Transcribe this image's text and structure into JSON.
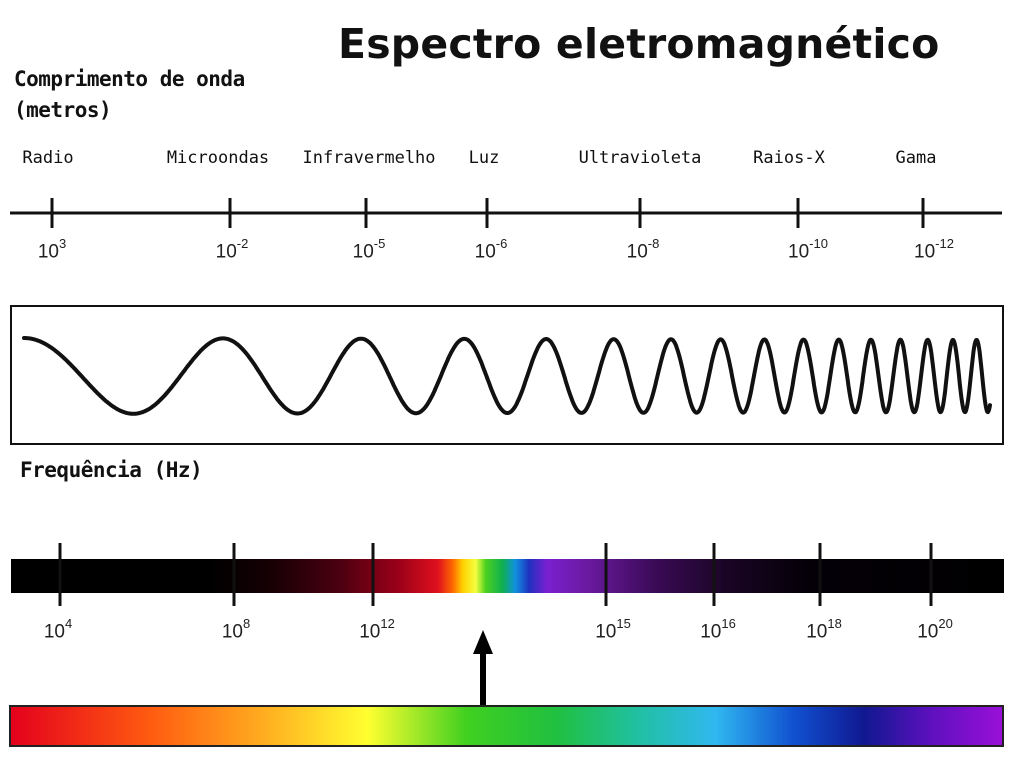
{
  "title": "Espectro eletromagnético",
  "wavelength": {
    "label_line1": "Comprimento de onda",
    "label_line2": "(metros)",
    "bands": [
      {
        "name": "Radio",
        "base": "10",
        "exp": "3"
      },
      {
        "name": "Microondas",
        "base": "10",
        "exp": "-2"
      },
      {
        "name": "Infravermelho",
        "base": "10",
        "exp": "-5"
      },
      {
        "name": "Luz",
        "base": "10",
        "exp": "-6"
      },
      {
        "name": "Ultravioleta",
        "base": "10",
        "exp": "-8"
      },
      {
        "name": "Raios-X",
        "base": "10",
        "exp": "-10"
      },
      {
        "name": "Gama",
        "base": "10",
        "exp": "-12"
      }
    ]
  },
  "frequency": {
    "label": "Frequência (Hz)",
    "ticks": [
      {
        "base": "10",
        "exp": "4"
      },
      {
        "base": "10",
        "exp": "8"
      },
      {
        "base": "10",
        "exp": "12"
      },
      {
        "base": "10",
        "exp": "15"
      },
      {
        "base": "10",
        "exp": "16"
      },
      {
        "base": "10",
        "exp": "18"
      },
      {
        "base": "10",
        "exp": "20"
      }
    ]
  },
  "colors": {
    "ink": "#111111",
    "bar": "#000000"
  }
}
